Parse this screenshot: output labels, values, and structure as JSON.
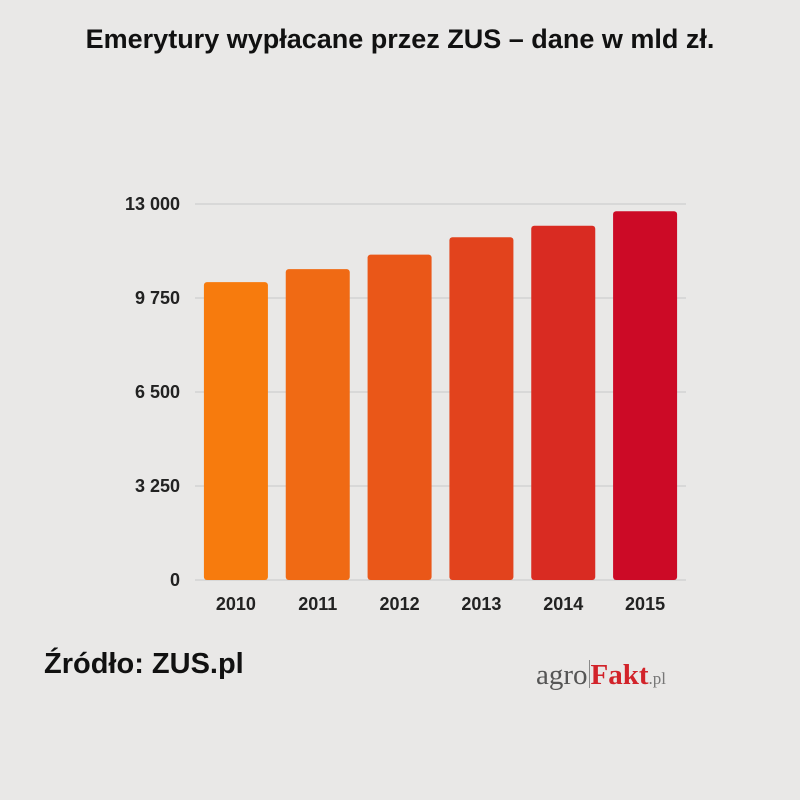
{
  "chart_data": {
    "type": "bar",
    "title": "Emerytury wypłacane przez ZUS – dane w mld zł.",
    "xlabel": "",
    "ylabel": "",
    "categories": [
      "2010",
      "2011",
      "2012",
      "2013",
      "2014",
      "2015"
    ],
    "values": [
      10300,
      10750,
      11250,
      11850,
      12250,
      12750
    ],
    "ylim": [
      0,
      13000
    ],
    "yticks": [
      0,
      3250,
      6500,
      9750,
      13000
    ],
    "ytick_labels": [
      "0",
      "3 250",
      "6 500",
      "9 750",
      "13 000"
    ],
    "grid": "horizontal",
    "legend": "none",
    "bar_colors": [
      "#f77b0d",
      "#f06a14",
      "#ea5718",
      "#e2431d",
      "#d92b22",
      "#cc0a26"
    ]
  },
  "source": {
    "label": "Źródło:  ZUS.pl"
  },
  "logo": {
    "agro": "agro",
    "fakt": "Fakt",
    "pl": ".pl"
  },
  "colors": {
    "background": "#e9e8e7",
    "grid": "#c8c8c8",
    "text": "#111111"
  }
}
